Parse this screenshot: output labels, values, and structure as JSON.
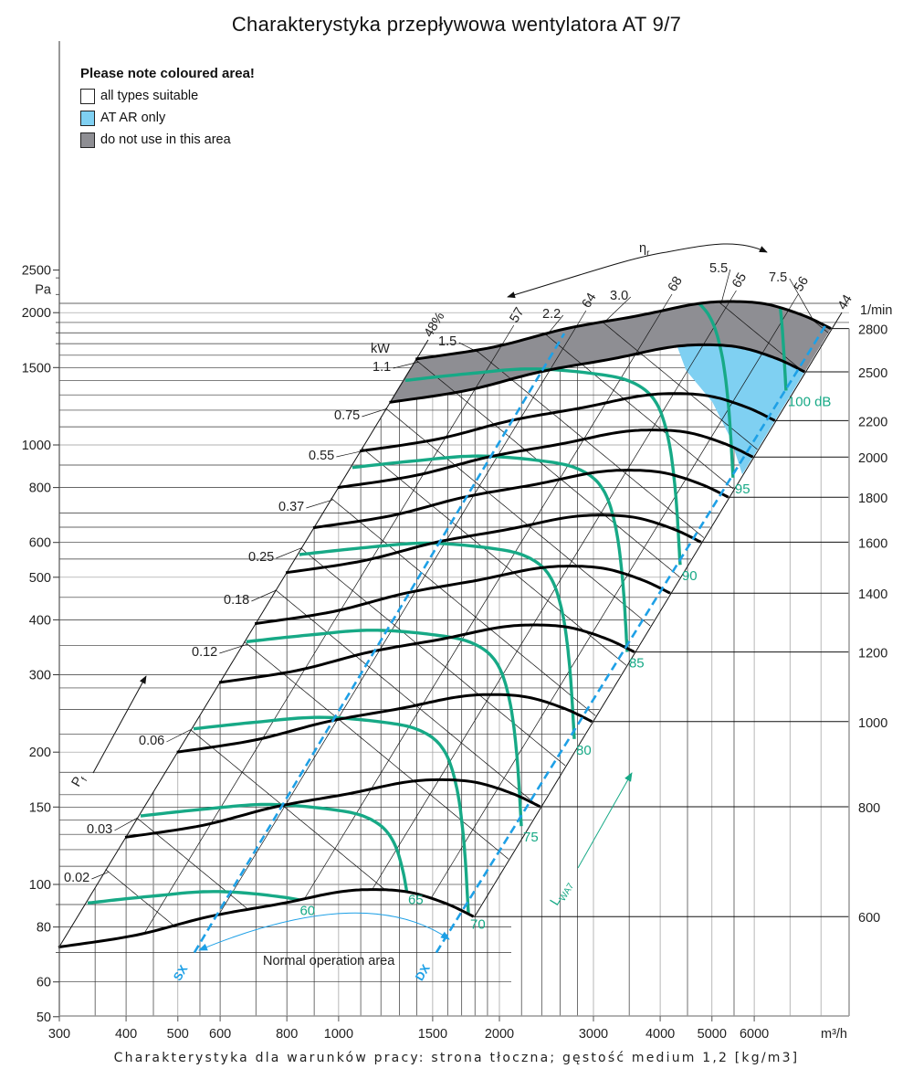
{
  "title": "Charakterystyka przepływowa wentylatora AT 9/7",
  "caption": "Charakterystyka dla warunków pracy: strona tłoczna; gęstość medium 1,2 [kg/m3]",
  "legend": {
    "heading": "Please note coloured area!",
    "items": [
      {
        "label": "all types suitable",
        "color": "#ffffff"
      },
      {
        "label": "AT AR only",
        "color": "#7fd0f2"
      },
      {
        "label": "do not use in this area",
        "color": "#8e8e93"
      }
    ]
  },
  "chart_data": {
    "type": "line",
    "title": "Charakterystyka przepływowa wentylatora AT 9/7",
    "x_axis": {
      "unit": "m³/h",
      "scale": "log",
      "range": [
        300,
        9000
      ],
      "ticks": [
        300,
        400,
        500,
        600,
        800,
        1000,
        1500,
        2000,
        3000,
        4000,
        5000,
        6000
      ]
    },
    "y_axis": {
      "unit": "Pa",
      "scale": "log",
      "range": [
        50,
        2600
      ],
      "ticks": [
        2500,
        2000,
        1500,
        1000,
        800,
        600,
        500,
        400,
        300,
        200,
        150,
        100,
        80,
        60,
        50
      ]
    },
    "grid": true,
    "speed_unit": "1/min",
    "reference_curve_rpm": 2800,
    "reference_curve": [
      [
        1394,
        1568
      ],
      [
        1950,
        1670
      ],
      [
        2670,
        1840
      ],
      [
        3650,
        1970
      ],
      [
        4630,
        2090
      ],
      [
        5420,
        2120
      ],
      [
        6340,
        2090
      ],
      [
        7420,
        1970
      ],
      [
        8350,
        1840
      ]
    ],
    "speeds": [
      2800,
      2500,
      2200,
      2000,
      1800,
      1600,
      1400,
      1200,
      1000,
      800,
      600
    ],
    "power_unit": "kW",
    "power_lines": [
      0.02,
      0.03,
      0.06,
      0.12,
      0.18,
      0.25,
      0.37,
      0.55,
      0.75,
      1.1,
      1.5,
      2.2,
      3.0,
      5.5,
      7.5
    ],
    "power_labels": [
      "0.02",
      "0.03",
      "0.06",
      "0.12",
      "0.18",
      "0.25",
      "0.37",
      "0.55",
      "0.75",
      "1.1",
      "1.5",
      "2.2",
      "3.0",
      "5.5",
      "7.5"
    ],
    "efficiency_lines": [
      {
        "label": "48%",
        "q_at_2000pa": 1580
      },
      {
        "label": "57",
        "q_at_2000pa": 2200
      },
      {
        "label": "64",
        "q_at_2000pa": 2890
      },
      {
        "label": "68",
        "q_at_2000pa": 4010
      },
      {
        "label": "65",
        "q_at_2000pa": 5240
      },
      {
        "label": "56",
        "q_at_2000pa": 6910
      },
      {
        "label": "44",
        "q_at_2000pa": 8750
      }
    ],
    "sound_reference": {
      "db": 70,
      "curve": [
        [
          535,
          226
        ],
        [
          700,
          234
        ],
        [
          920,
          240
        ],
        [
          1210,
          234
        ],
        [
          1420,
          224
        ],
        [
          1570,
          203
        ],
        [
          1660,
          168
        ],
        [
          1715,
          126
        ],
        [
          1750,
          86
        ]
      ]
    },
    "sound_levels": [
      {
        "db": 60,
        "label": "60"
      },
      {
        "db": 65,
        "label": "65"
      },
      {
        "db": 70,
        "label": "70"
      },
      {
        "db": 75,
        "label": "75"
      },
      {
        "db": 80,
        "label": "80"
      },
      {
        "db": 85,
        "label": "85"
      },
      {
        "db": 90,
        "label": "90"
      },
      {
        "db": 95,
        "label": "95"
      },
      {
        "db": 100,
        "label": "100 dB"
      }
    ],
    "sx_line": {
      "label": "SX",
      "points": [
        [
          537,
          70
        ],
        [
          2645,
          1793
        ]
      ]
    },
    "dx_line": {
      "label": "DX",
      "points": [
        [
          1524,
          70
        ],
        [
          8180,
          1880
        ]
      ]
    },
    "normal_operation_label": "Normal operation area",
    "ar_only_region": [
      [
        4300,
        1680
      ],
      [
        4840,
        1690
      ],
      [
        5660,
        1666
      ],
      [
        6630,
        1570
      ],
      [
        7457,
        1466
      ],
      [
        5740,
        834
      ],
      [
        5420,
        1034
      ],
      [
        5010,
        1252
      ],
      [
        4470,
        1480
      ]
    ],
    "efficiency_symbol": {
      "main": "η",
      "sub": "r"
    },
    "pressure_symbol": {
      "main": "P",
      "sub": "f"
    },
    "sound_symbol": {
      "main": "L",
      "sub": "WA7"
    },
    "colors": {
      "speed_curve": "#000000",
      "sound_curve": "#17a986",
      "sx_dx": "#1ea0e6",
      "ar_only": "#7fd0f2",
      "do_not_use": "#8e8e93"
    }
  }
}
